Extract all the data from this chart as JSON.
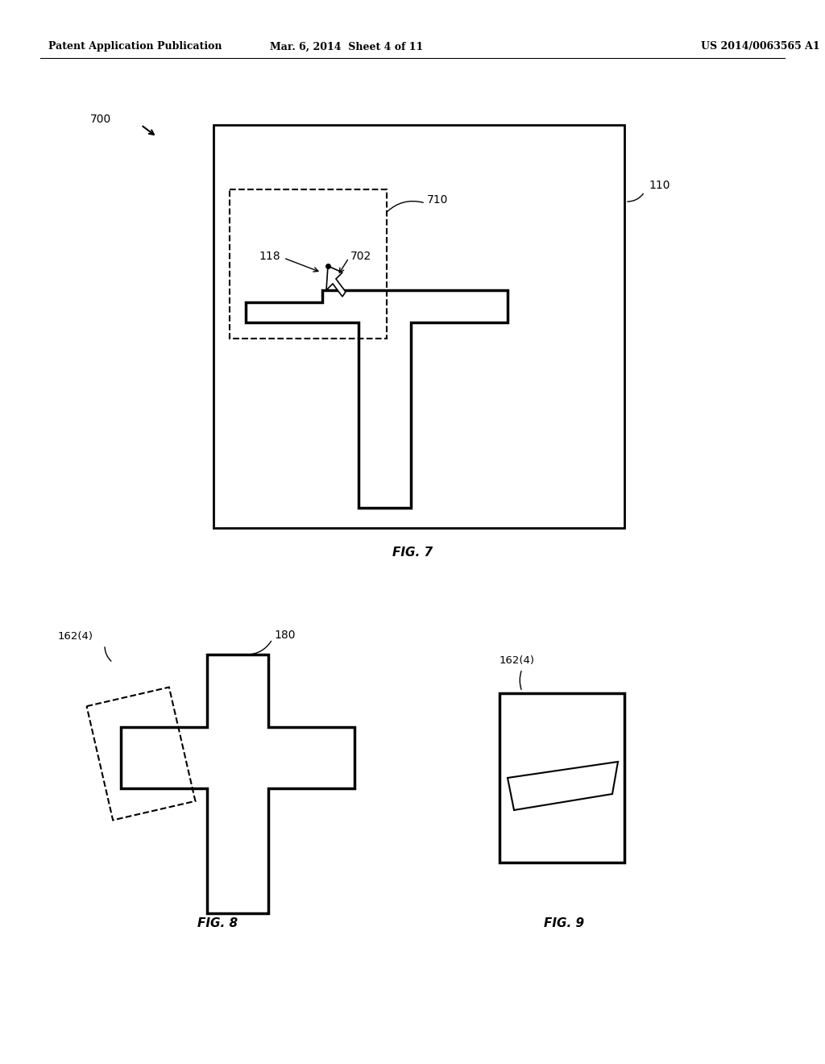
{
  "header_left": "Patent Application Publication",
  "header_mid": "Mar. 6, 2014  Sheet 4 of 11",
  "header_right": "US 2014/0063565 A1",
  "fig7_label": "FIG. 7",
  "fig8_label": "FIG. 8",
  "fig9_label": "FIG. 9",
  "label_700": "700",
  "label_110": "110",
  "label_710": "710",
  "label_118": "118",
  "label_702": "702",
  "label_162_4_fig8": "162(4)",
  "label_180": "180",
  "label_162_4_fig9": "162(4)",
  "bg_color": "#ffffff",
  "line_color": "#000000"
}
